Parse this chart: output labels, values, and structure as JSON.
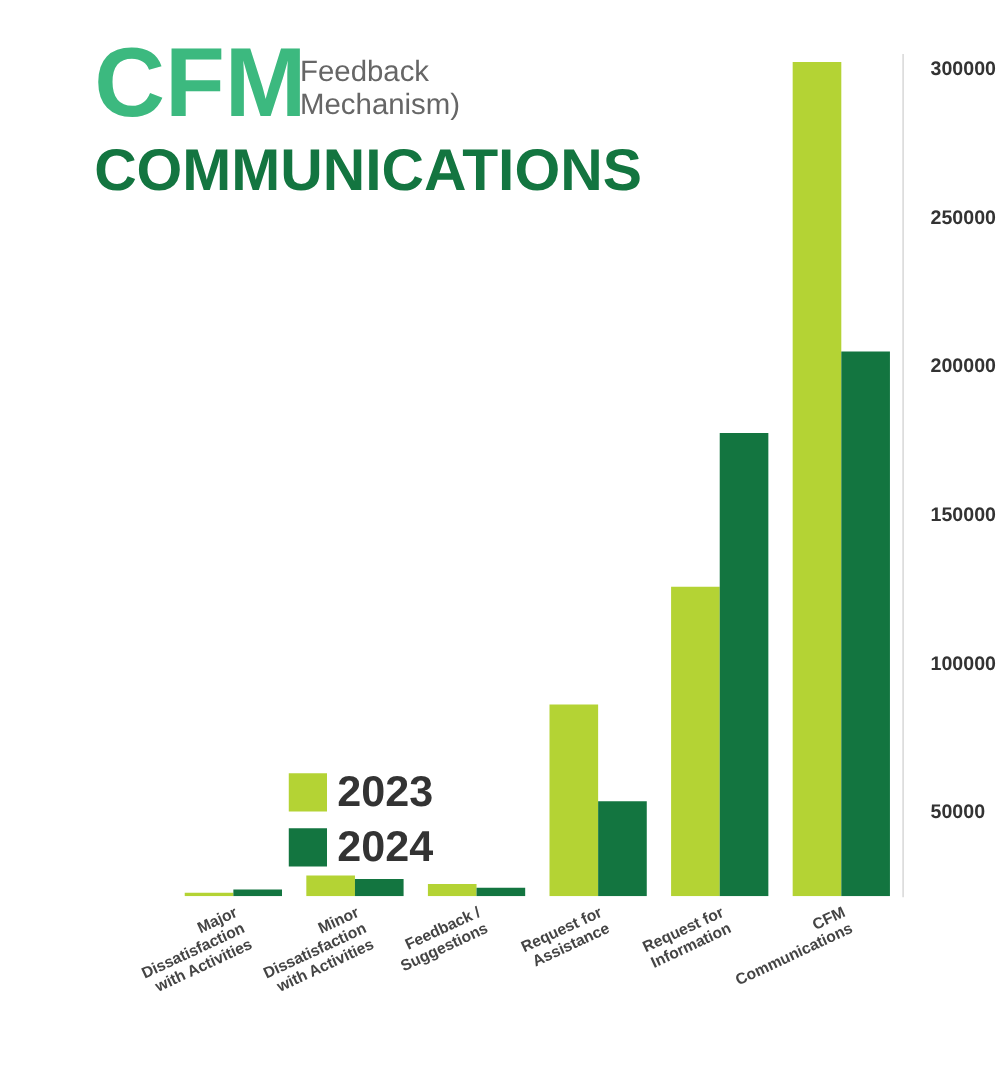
{
  "chart_data": {
    "type": "bar",
    "title": "CFM",
    "subtitle": "COMMUNICATIONS",
    "annotations": [
      "Feedback\nMechanism)"
    ],
    "categories": [
      "Major\nDissatisfaction\nwith Activities",
      "Minor\nDissatisfaction\nwith Activities",
      "Feedback /\nSuggestions",
      "Request for\nAssistance",
      "Request for\nInformation",
      "CFM\nCommunications"
    ],
    "series": [
      {
        "name": "2023",
        "color": "#b4d334",
        "values": [
          22700,
          28500,
          25600,
          86000,
          125600,
          302000
        ]
      },
      {
        "name": "2024",
        "color": "#137540",
        "values": [
          23800,
          27300,
          24400,
          53500,
          177300,
          204700
        ]
      }
    ],
    "ylim": [
      21500,
      305000
    ],
    "yticks": [
      50000,
      100000,
      150000,
      200000,
      250000,
      300000
    ],
    "grid": false,
    "legend": "bottom left"
  }
}
